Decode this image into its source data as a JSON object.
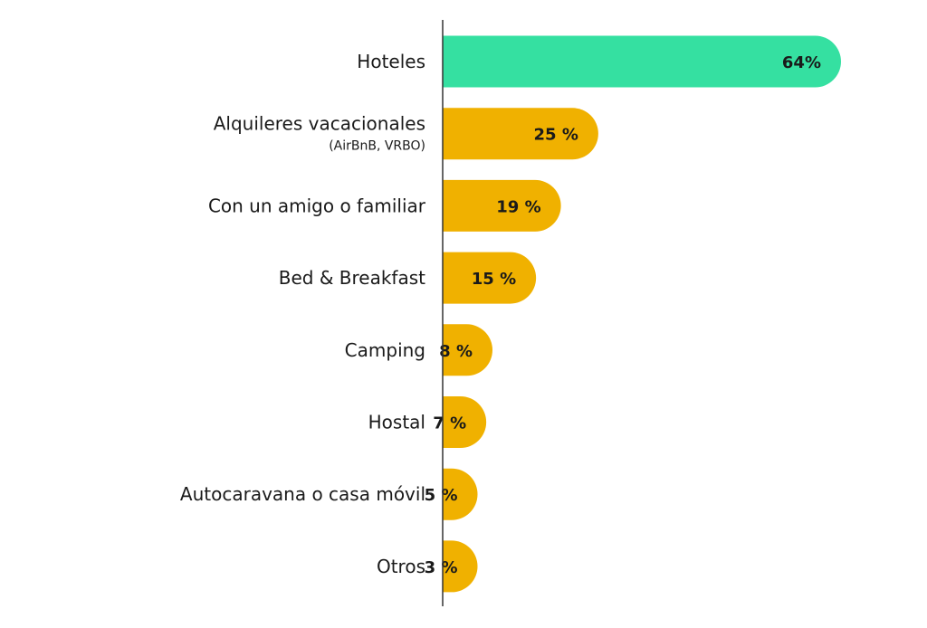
{
  "chart_data": {
    "type": "bar",
    "orientation": "horizontal",
    "categories": [
      "Hoteles",
      "Alquileres vacacionales",
      "Con un amigo o familiar",
      "Bed & Breakfast",
      "Camping",
      "Hostal",
      "Autocaravana o casa móvil",
      "Otros"
    ],
    "category_sublabels": [
      "",
      "(AirBnB, VRBO)",
      "",
      "",
      "",
      "",
      "",
      ""
    ],
    "values": [
      64,
      25,
      19,
      15,
      8,
      7,
      5,
      3
    ],
    "value_labels": [
      "64%",
      "25 %",
      "19 %",
      "15 %",
      "8 %",
      "7 %",
      "5 %",
      "3 %"
    ],
    "bar_colors": [
      "#35e0a1",
      "#f0b100",
      "#f0b100",
      "#f0b100",
      "#f0b100",
      "#f0b100",
      "#f0b100",
      "#f0b100"
    ],
    "axis_color": "#333333",
    "xlim": [
      0,
      64
    ],
    "grid": false,
    "legend": "none"
  }
}
